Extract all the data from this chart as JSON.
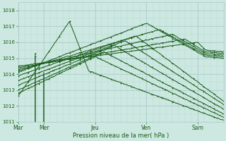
{
  "xlabel": "Pression niveau de la mer( hPa )",
  "ylim": [
    1011,
    1018.5
  ],
  "yticks": [
    1011,
    1012,
    1013,
    1014,
    1015,
    1016,
    1017,
    1018
  ],
  "day_labels": [
    "Mar",
    "Mer",
    "Jeu",
    "Ven",
    "Sam"
  ],
  "day_positions": [
    0,
    24,
    72,
    120,
    168
  ],
  "bg_color": "#cce8e0",
  "grid_color_major": "#aacccc",
  "grid_color_minor": "#b8d8d4",
  "line_color": "#1a5c1a",
  "total_hours": 192,
  "figsize": [
    3.2,
    2.0
  ],
  "dpi": 100,
  "series": [
    [
      0,
      1012.6,
      48,
      1017.3,
      66,
      1014.2,
      192,
      1011.1
    ],
    [
      0,
      1012.8,
      72,
      1015.1,
      192,
      1011.3,
      192,
      1011.3
    ],
    [
      0,
      1013.0,
      80,
      1015.4,
      192,
      1011.5,
      192,
      1011.5
    ],
    [
      0,
      1013.3,
      90,
      1015.8,
      192,
      1011.8,
      192,
      1011.8
    ],
    [
      0,
      1013.6,
      100,
      1016.1,
      192,
      1012.1,
      192,
      1012.1
    ],
    [
      0,
      1013.9,
      110,
      1016.4,
      192,
      1012.3,
      192,
      1012.3
    ],
    [
      0,
      1014.1,
      120,
      1017.2,
      175,
      1015.1,
      192,
      1015.0
    ],
    [
      0,
      1014.2,
      132,
      1016.8,
      175,
      1015.2,
      192,
      1015.1
    ],
    [
      0,
      1014.3,
      144,
      1016.5,
      175,
      1015.3,
      192,
      1015.2
    ],
    [
      0,
      1014.4,
      156,
      1016.2,
      175,
      1015.4,
      192,
      1015.3
    ],
    [
      0,
      1014.5,
      168,
      1016.0,
      175,
      1015.5,
      192,
      1015.4
    ]
  ],
  "bump_series": [
    [
      16,
      1013.5,
      24,
      1015.1,
      36,
      1014.0
    ],
    [
      16,
      1013.7,
      24,
      1015.3,
      36,
      1014.1
    ]
  ]
}
